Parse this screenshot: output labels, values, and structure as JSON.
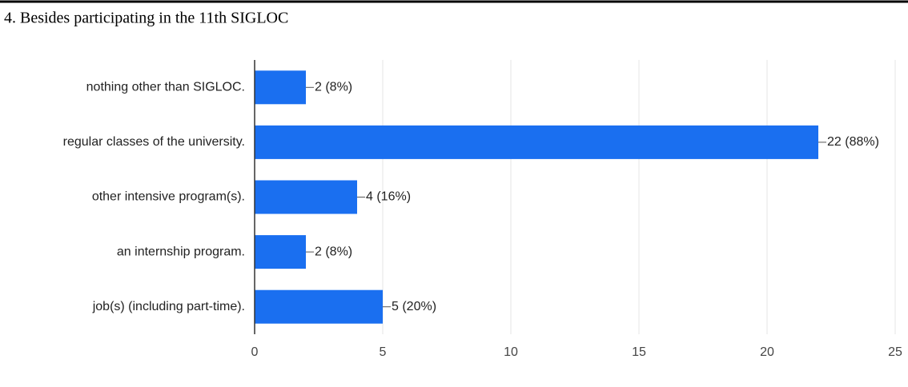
{
  "chart_data": {
    "type": "bar",
    "orientation": "horizontal",
    "title": "4. Besides participating in the 11th SIGLOC",
    "categories": [
      "nothing other than SIGLOC.",
      "regular classes of the university.",
      "other intensive program(s).",
      "an internship program.",
      "job(s) (including part-time)."
    ],
    "values": [
      2,
      22,
      4,
      2,
      5
    ],
    "value_labels": [
      "2 (8%)",
      "22 (88%)",
      "4 (16%)",
      "2 (8%)",
      "5 (20%)"
    ],
    "color": "#1a6ff0",
    "xlim": [
      0,
      25
    ],
    "xticks": [
      0,
      5,
      10,
      15,
      20,
      25
    ],
    "grid": true
  }
}
